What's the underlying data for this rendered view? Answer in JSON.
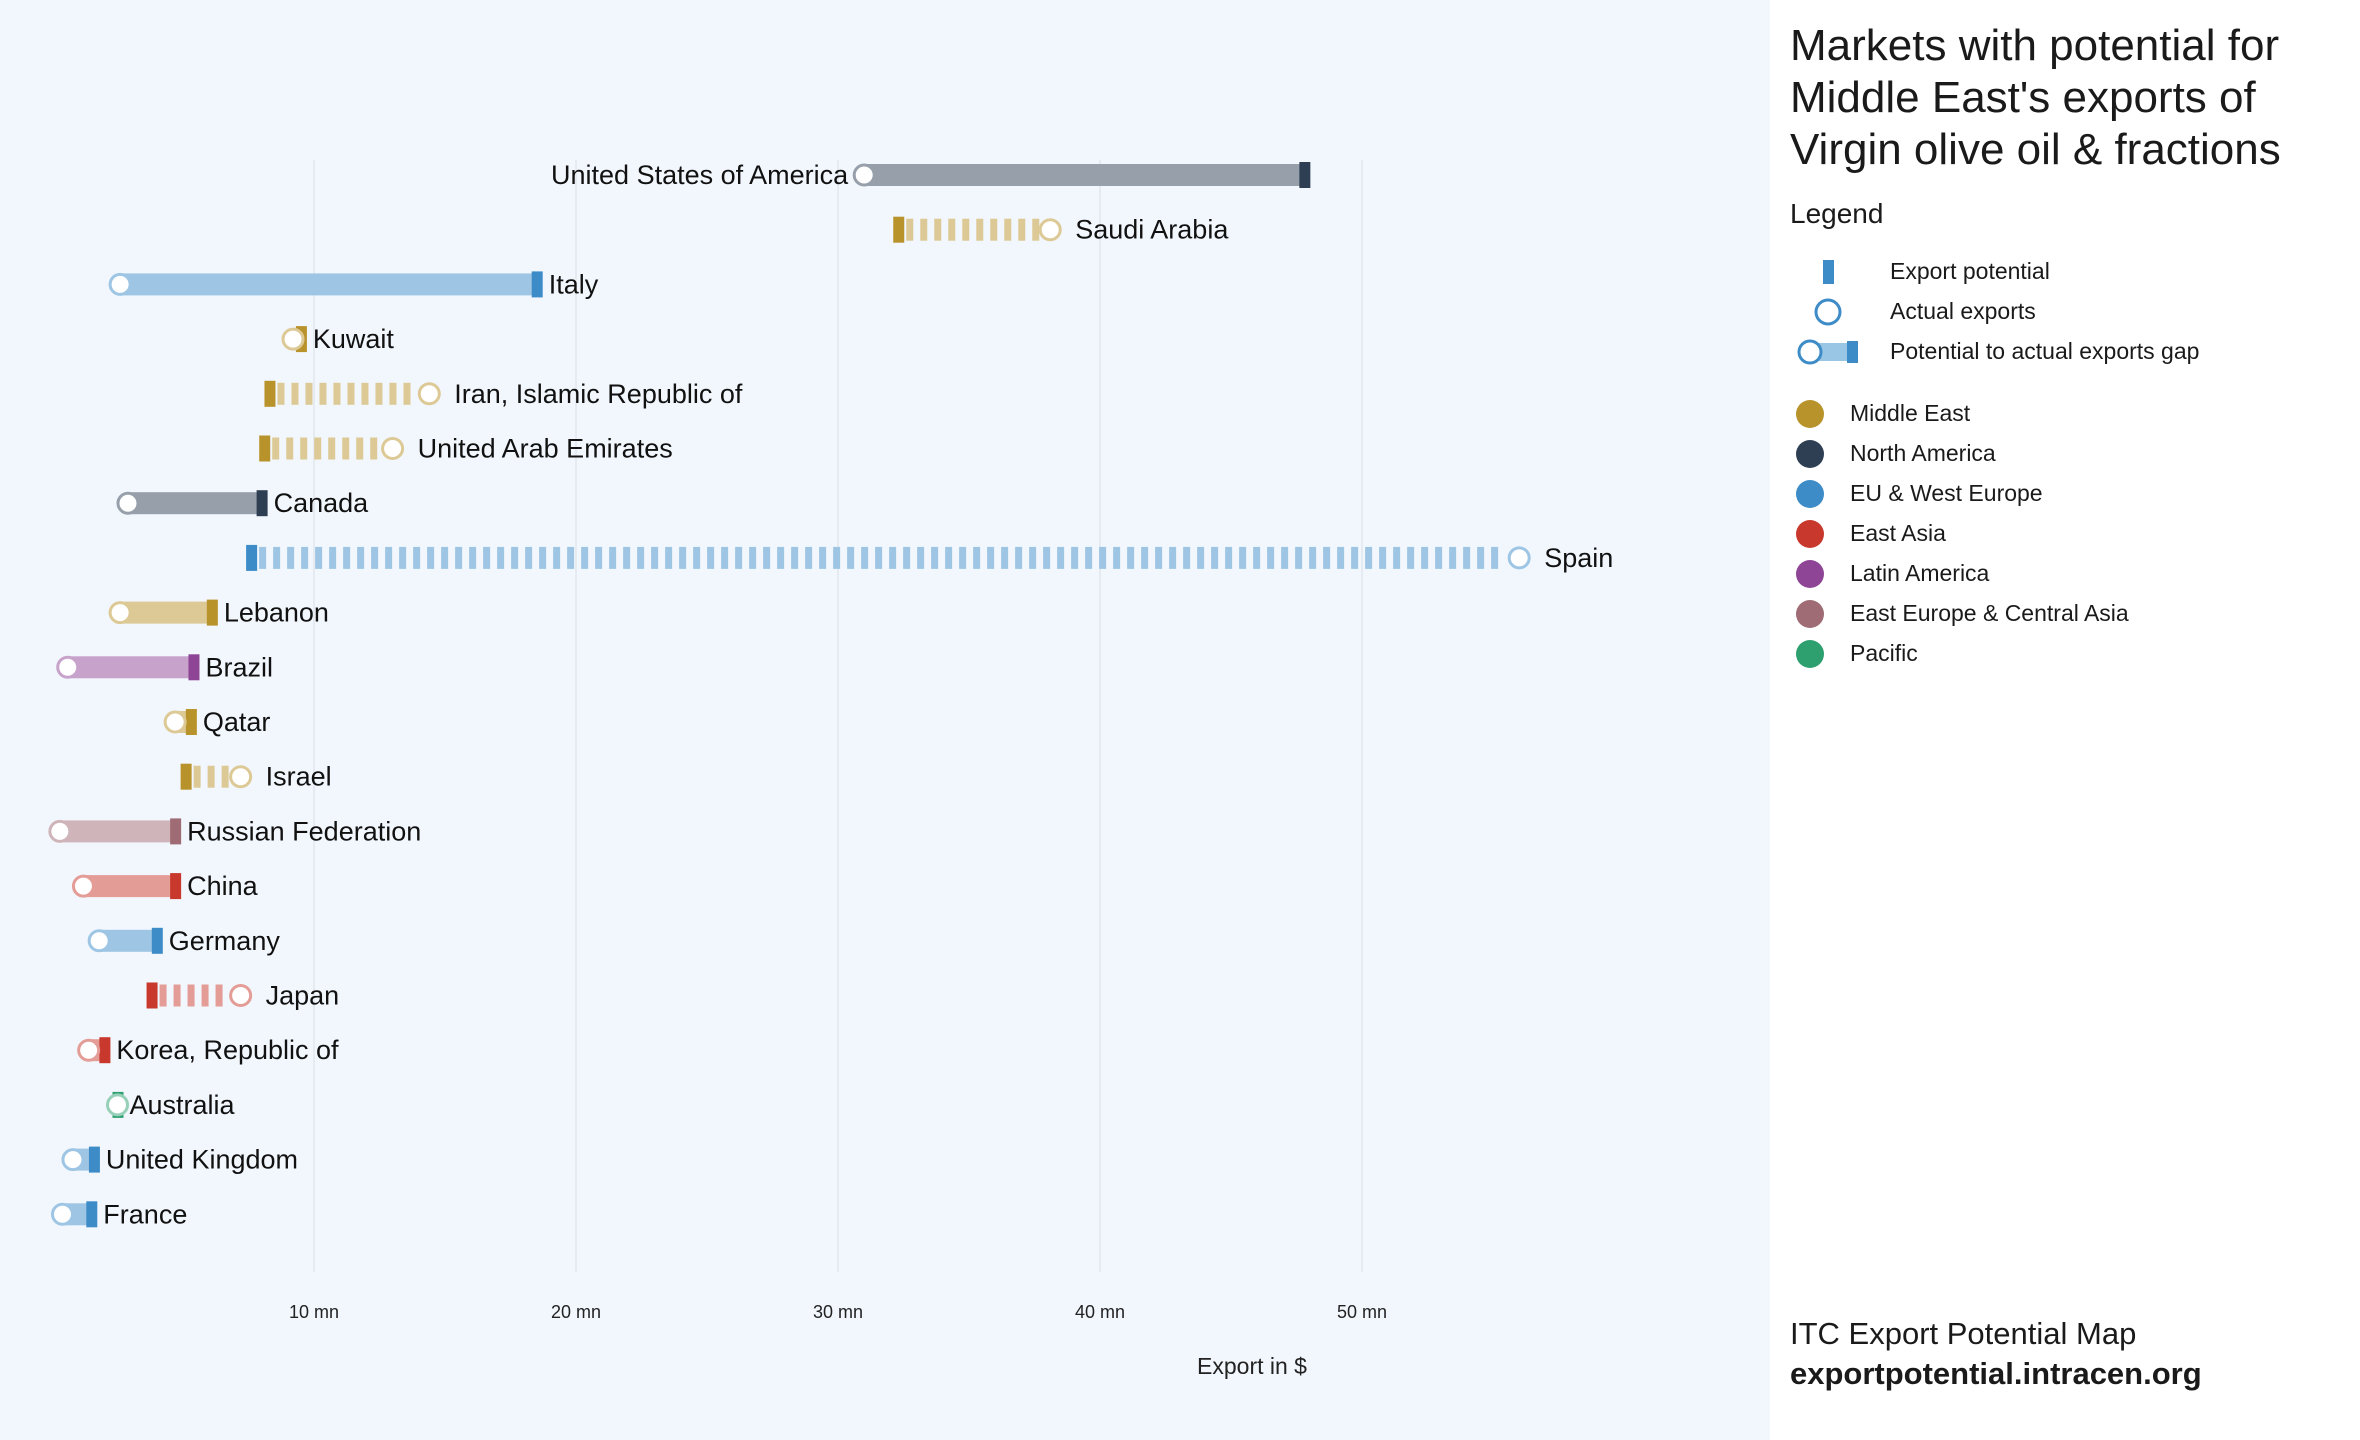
{
  "panel": {
    "title": "Markets with potential for Middle East's exports of Virgin olive oil & fractions",
    "legend_heading": "Legend",
    "legend_items": [
      {
        "label": "Export potential",
        "icon": "export-potential-bar"
      },
      {
        "label": "Actual exports",
        "icon": "actual-exports-circle"
      },
      {
        "label": "Potential to actual exports gap",
        "icon": "gap-bar"
      }
    ],
    "regions": [
      {
        "label": "Middle East",
        "color": "#b8922a"
      },
      {
        "label": "North America",
        "color": "#2e3f54"
      },
      {
        "label": "EU & West Europe",
        "color": "#3d8cc8"
      },
      {
        "label": "East Asia",
        "color": "#c8382c"
      },
      {
        "label": "Latin America",
        "color": "#8e4595"
      },
      {
        "label": "East Europe & Central Asia",
        "color": "#9f6b74"
      },
      {
        "label": "Pacific",
        "color": "#2ea070"
      }
    ],
    "footer_line1": "ITC Export Potential Map",
    "footer_line2": "exportpotential.intracen.org"
  },
  "chart_data": {
    "type": "dumbbell",
    "xlabel": "Export in $",
    "x_ticks": [
      "10 mn",
      "20 mn",
      "30 mn",
      "40 mn",
      "50 mn"
    ],
    "x_tick_values": [
      10,
      20,
      30,
      40,
      50
    ],
    "unit": "mn USD",
    "rows": [
      {
        "country": "United States of America",
        "region": "North America",
        "potential": 47.8,
        "actual": 31.0
      },
      {
        "country": "Saudi Arabia",
        "region": "Middle East",
        "potential": 32.3,
        "actual": 38.1
      },
      {
        "country": "Italy",
        "region": "EU & West Europe",
        "potential": 18.5,
        "actual": 2.6
      },
      {
        "country": "Kuwait",
        "region": "Middle East",
        "potential": 9.5,
        "actual": 9.2
      },
      {
        "country": "Iran, Islamic Republic of",
        "region": "Middle East",
        "potential": 8.3,
        "actual": 14.4
      },
      {
        "country": "United Arab Emirates",
        "region": "Middle East",
        "potential": 8.1,
        "actual": 13.0
      },
      {
        "country": "Canada",
        "region": "North America",
        "potential": 8.0,
        "actual": 2.9
      },
      {
        "country": "Spain",
        "region": "EU & West Europe",
        "potential": 7.6,
        "actual": 56.0
      },
      {
        "country": "Lebanon",
        "region": "Middle East",
        "potential": 6.1,
        "actual": 2.6
      },
      {
        "country": "Brazil",
        "region": "Latin America",
        "potential": 5.4,
        "actual": 0.6
      },
      {
        "country": "Qatar",
        "region": "Middle East",
        "potential": 5.3,
        "actual": 4.7
      },
      {
        "country": "Israel",
        "region": "Middle East",
        "potential": 5.1,
        "actual": 7.2
      },
      {
        "country": "Russian Federation",
        "region": "East Europe & Central Asia",
        "potential": 4.7,
        "actual": 0.3
      },
      {
        "country": "China",
        "region": "East Asia",
        "potential": 4.7,
        "actual": 1.2
      },
      {
        "country": "Germany",
        "region": "EU & West Europe",
        "potential": 4.0,
        "actual": 1.8
      },
      {
        "country": "Japan",
        "region": "East Asia",
        "potential": 3.8,
        "actual": 7.2
      },
      {
        "country": "Korea, Republic of",
        "region": "East Asia",
        "potential": 2.0,
        "actual": 1.4
      },
      {
        "country": "Australia",
        "region": "Pacific",
        "potential": 2.5,
        "actual": 2.5
      },
      {
        "country": "United Kingdom",
        "region": "EU & West Europe",
        "potential": 1.6,
        "actual": 0.8
      },
      {
        "country": "France",
        "region": "EU & West Europe",
        "potential": 1.5,
        "actual": 0.4
      }
    ]
  }
}
